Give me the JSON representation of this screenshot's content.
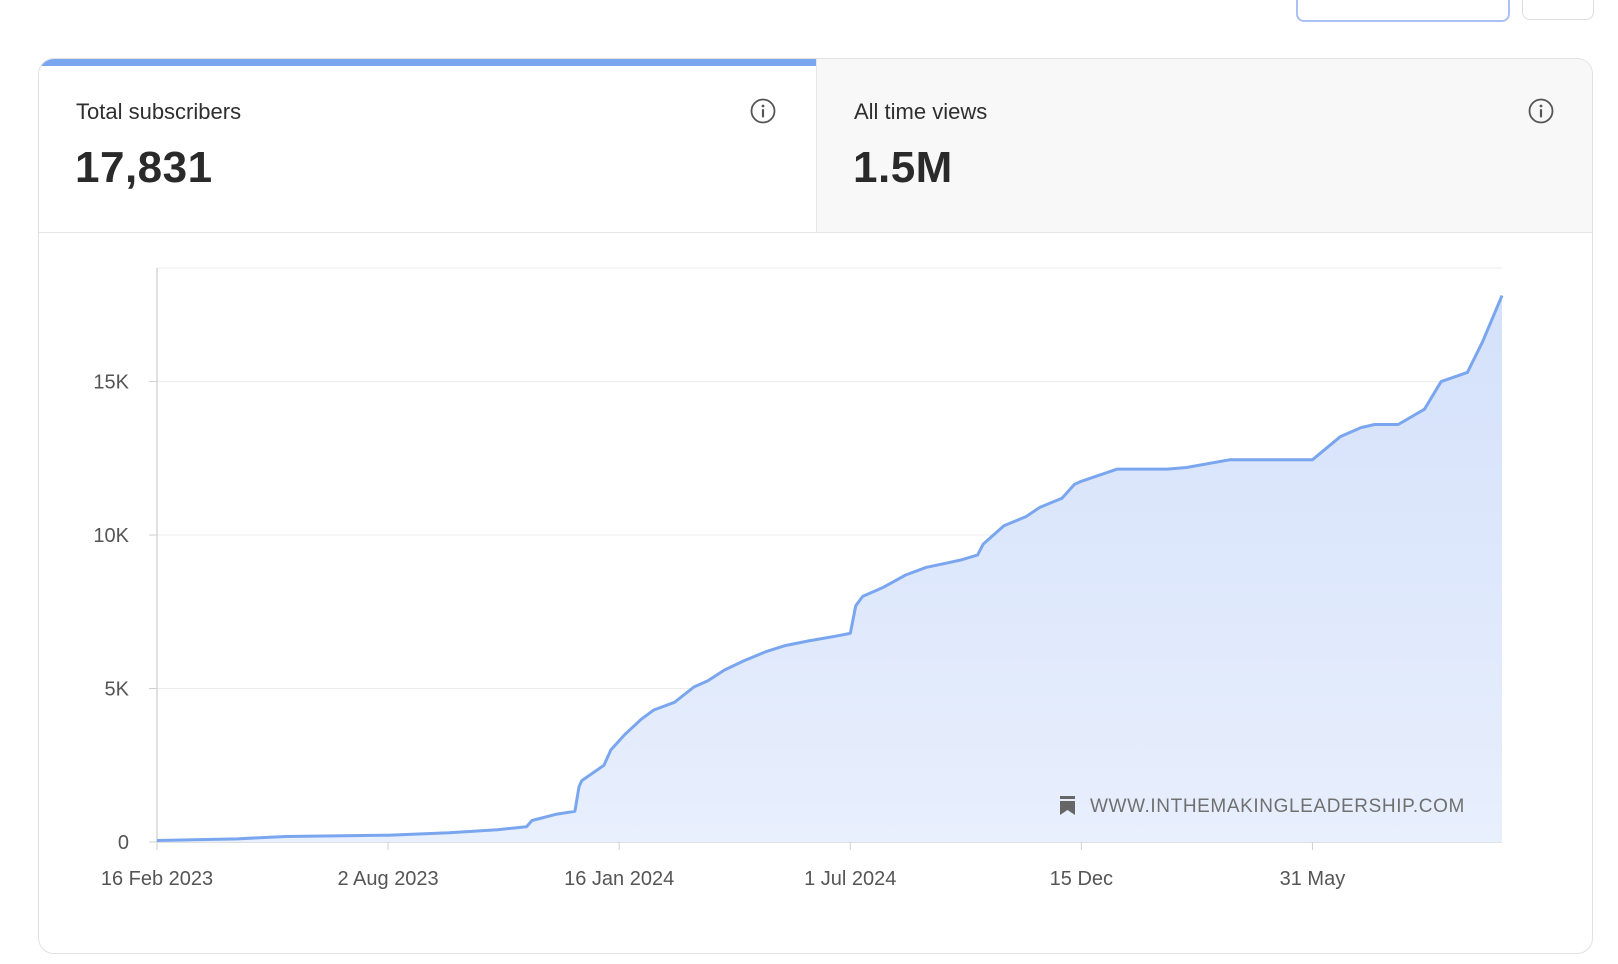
{
  "toolbar": {
    "primary_button_label": "",
    "secondary_button_label": ""
  },
  "stats": [
    {
      "label": "Total subscribers",
      "value": "17,831",
      "active": true
    },
    {
      "label": "All time views",
      "value": "1.5M",
      "active": false
    }
  ],
  "icons": {
    "info": "info-icon",
    "watermark": "bookmark-icon"
  },
  "watermark": "WWW.INTHEMAKINGLEADERSHIP.COM",
  "colors": {
    "accent": "#7aa6ef",
    "area_fill": "#dbe6fb"
  },
  "chart_data": {
    "type": "area",
    "title": "",
    "xlabel": "",
    "ylabel": "",
    "ylim": [
      0,
      18700
    ],
    "yticks": [
      0,
      5000,
      10000,
      15000
    ],
    "ytick_labels": [
      "0",
      "5K",
      "10K",
      "15K"
    ],
    "xticks": [
      "2023-02-16",
      "2023-08-02",
      "2024-01-16",
      "2024-07-01",
      "2024-12-15",
      "2025-05-31"
    ],
    "xtick_labels": [
      "16 Feb 2023",
      "2 Aug 2023",
      "16 Jan 2024",
      "1 Jul 2024",
      "15 Dec",
      "31 May"
    ],
    "xlim": [
      "2023-02-16",
      "2025-10-15"
    ],
    "grid": true,
    "series": [
      {
        "x": [
          "2023-02-16",
          "2023-04-15",
          "2023-05-01",
          "2023-05-20",
          "2023-08-02",
          "2023-09-15",
          "2023-10-20",
          "2023-11-10",
          "2023-11-14",
          "2023-12-01",
          "2023-12-15",
          "2023-12-18",
          "2023-12-20",
          "2024-01-05",
          "2024-01-10",
          "2024-01-20",
          "2024-02-01",
          "2024-02-10",
          "2024-02-25",
          "2024-03-10",
          "2024-03-20",
          "2024-04-01",
          "2024-04-15",
          "2024-05-01",
          "2024-05-15",
          "2024-06-01",
          "2024-06-20",
          "2024-07-01",
          "2024-07-05",
          "2024-07-10",
          "2024-07-25",
          "2024-08-10",
          "2024-08-25",
          "2024-09-10",
          "2024-09-20",
          "2024-10-01",
          "2024-10-05",
          "2024-10-20",
          "2024-11-05",
          "2024-11-15",
          "2024-12-01",
          "2024-12-10",
          "2024-12-15",
          "2025-01-10",
          "2025-02-15",
          "2025-03-01",
          "2025-04-01",
          "2025-05-15",
          "2025-05-31",
          "2025-06-20",
          "2025-07-05",
          "2025-07-15",
          "2025-08-01",
          "2025-08-20",
          "2025-09-01",
          "2025-09-20",
          "2025-10-01",
          "2025-10-15"
        ],
        "y": [
          50,
          100,
          140,
          180,
          220,
          300,
          400,
          500,
          700,
          900,
          1000,
          1800,
          2000,
          2500,
          3000,
          3500,
          4000,
          4300,
          4550,
          5050,
          5250,
          5600,
          5900,
          6200,
          6400,
          6550,
          6700,
          6800,
          7700,
          8000,
          8300,
          8700,
          8950,
          9100,
          9200,
          9350,
          9700,
          10300,
          10600,
          10900,
          11200,
          11650,
          11750,
          12150,
          12150,
          12200,
          12450,
          12450,
          12450,
          13200,
          13500,
          13600,
          13600,
          14100,
          15000,
          15300,
          16300,
          17800
        ]
      }
    ]
  }
}
